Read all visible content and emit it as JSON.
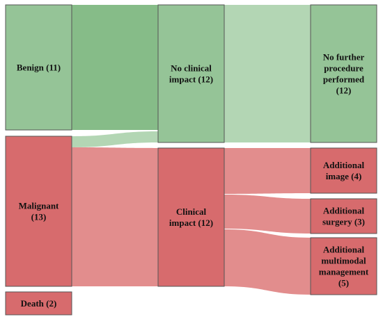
{
  "colors": {
    "green_node": "#95c497",
    "green_flow_dark": "#86bc88",
    "green_flow_light": "#b3d6b4",
    "red_node": "#d76b6d",
    "red_flow": "#e28d8d",
    "node_border": "#555555"
  },
  "nodes": [
    {
      "id": "benign",
      "label_lines": [
        "Benign (11)"
      ],
      "color": "green"
    },
    {
      "id": "malignant",
      "label_lines": [
        "Malignant",
        "(13)"
      ],
      "color": "red"
    },
    {
      "id": "death",
      "label_lines": [
        "Death (2)"
      ],
      "color": "red"
    },
    {
      "id": "no_clinical",
      "label_lines": [
        "No clinical",
        "impact (12)"
      ],
      "color": "green"
    },
    {
      "id": "clinical",
      "label_lines": [
        "Clinical",
        "impact (12)"
      ],
      "color": "red"
    },
    {
      "id": "no_further",
      "label_lines": [
        "No further",
        "procedure",
        "performed",
        "(12)"
      ],
      "color": "green"
    },
    {
      "id": "add_image",
      "label_lines": [
        "Additional",
        "image (4)"
      ],
      "color": "red"
    },
    {
      "id": "add_surgery",
      "label_lines": [
        "Additional",
        "surgery (3)"
      ],
      "color": "red"
    },
    {
      "id": "add_multimodal",
      "label_lines": [
        "Additional",
        "multimodal",
        "management",
        "(5)"
      ],
      "color": "red"
    }
  ],
  "links": [
    {
      "source": "benign",
      "target": "no_clinical",
      "value": 11,
      "color": "green_dark"
    },
    {
      "source": "malignant",
      "target": "no_clinical",
      "value": 1,
      "color": "green_light"
    },
    {
      "source": "malignant",
      "target": "clinical",
      "value": 12,
      "color": "red"
    },
    {
      "source": "no_clinical",
      "target": "no_further",
      "value": 12,
      "color": "green_light"
    },
    {
      "source": "clinical",
      "target": "add_image",
      "value": 4,
      "color": "red"
    },
    {
      "source": "clinical",
      "target": "add_surgery",
      "value": 3,
      "color": "red"
    },
    {
      "source": "clinical",
      "target": "add_multimodal",
      "value": 5,
      "color": "red"
    }
  ]
}
